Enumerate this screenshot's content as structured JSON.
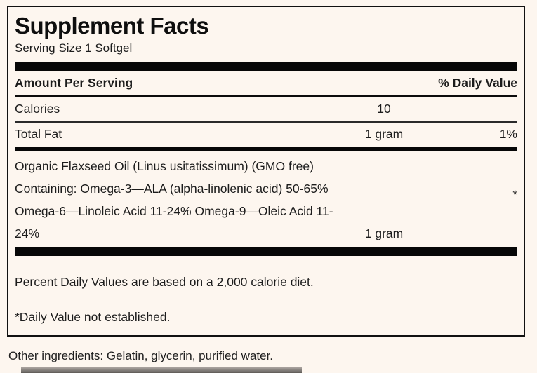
{
  "colors": {
    "background": "#fdf6ef",
    "text": "#1c1c1c",
    "bar": "#070707",
    "remnant_bar_top": "#b5aeaa",
    "remnant_bar_bottom": "#5f5c58"
  },
  "label": {
    "title": "Supplement Facts",
    "serving_size": "Serving Size 1 Softgel",
    "header": {
      "amount_per_serving": "Amount Per Serving",
      "daily_value": "% Daily Value"
    },
    "rows": [
      {
        "name": "Calories",
        "amount": "10",
        "dv": ""
      },
      {
        "name": "Total Fat",
        "amount": "1 gram",
        "dv": "1%"
      }
    ],
    "flaxseed": {
      "line1": "Organic Flaxseed Oil (Linus usitatissimum) (GMO free)",
      "line2": "Containing: Omega-3—ALA (alpha-linolenic acid) 50-65%",
      "line3": "Omega-6—Linoleic Acid 11-24% Omega-9—Oleic Acid 11-",
      "line4": "24%",
      "amount": "1 gram",
      "dv_mark": "*"
    },
    "footnotes": {
      "percent_dv": "Percent Daily Values are based on a 2,000 calorie diet.",
      "asterisk": "*Daily Value not established."
    }
  },
  "other_ingredients": "Other ingredients: Gelatin, glycerin, purified water."
}
